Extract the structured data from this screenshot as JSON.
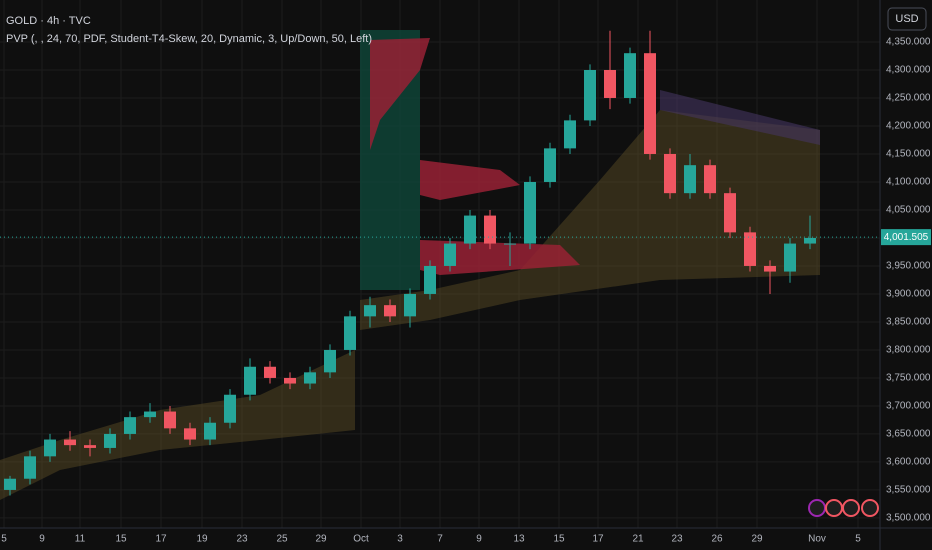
{
  "chart_data": {
    "type": "candlestick",
    "title": "GOLD · 4h · TVC",
    "subtitle": "PVP (, , 24, 70, PDF, Student-T4-Skew, 20, Dynamic, 3, Up/Down, 50, Left)",
    "currency": "USD",
    "up_color": "#26a69a",
    "down_color": "#f05662",
    "x": [
      0,
      1,
      2,
      3,
      4,
      5,
      6,
      7,
      8,
      9,
      10,
      11,
      12,
      13,
      14,
      15,
      16,
      17,
      18,
      19,
      20,
      21,
      22,
      23,
      24,
      25,
      26,
      27,
      28,
      29,
      30,
      31,
      32,
      33,
      34,
      35,
      36,
      37,
      38,
      39,
      40
    ],
    "open": [
      3550,
      3570,
      3610,
      3640,
      3630,
      3625,
      3650,
      3680,
      3690,
      3660,
      3640,
      3670,
      3720,
      3770,
      3750,
      3740,
      3760,
      3800,
      3860,
      3880,
      3860,
      3900,
      3950,
      3990,
      4040,
      3990,
      3990,
      4100,
      4160,
      4210,
      4300,
      4250,
      4330,
      4150,
      4080,
      4130,
      4080,
      4010,
      3950,
      3940,
      3990
    ],
    "high": [
      3575,
      3620,
      3650,
      3655,
      3640,
      3660,
      3690,
      3705,
      3700,
      3670,
      3680,
      3730,
      3785,
      3780,
      3760,
      3770,
      3810,
      3870,
      3895,
      3890,
      3910,
      3960,
      4000,
      4050,
      4050,
      4010,
      4110,
      4170,
      4220,
      4310,
      4370,
      4340,
      4370,
      4160,
      4150,
      4140,
      4090,
      4020,
      3960,
      4000,
      4040
    ],
    "low": [
      3540,
      3560,
      3600,
      3620,
      3610,
      3615,
      3640,
      3670,
      3650,
      3630,
      3630,
      3660,
      3710,
      3740,
      3730,
      3730,
      3750,
      3790,
      3840,
      3850,
      3840,
      3890,
      3940,
      3980,
      3980,
      3950,
      3980,
      4090,
      4150,
      4200,
      4230,
      4240,
      4140,
      4070,
      4070,
      4070,
      4000,
      3940,
      3900,
      3920,
      3980
    ],
    "close": [
      3570,
      3610,
      3640,
      3630,
      3625,
      3650,
      3680,
      3690,
      3660,
      3640,
      3670,
      3720,
      3770,
      3750,
      3740,
      3760,
      3800,
      3860,
      3880,
      3860,
      3900,
      3950,
      3990,
      4040,
      3990,
      3990,
      4100,
      4160,
      4210,
      4300,
      4250,
      4330,
      4150,
      4080,
      4130,
      4080,
      4010,
      3950,
      3940,
      3990,
      4000
    ],
    "last_price": 4001.505,
    "last_price_label": "4,001.505",
    "xlim": [
      -0.5,
      43.5
    ],
    "ylim": [
      3482,
      4425
    ],
    "grid": true,
    "xticks": [
      {
        "value": -0.3,
        "label": "5"
      },
      {
        "value": 1.6,
        "label": "9"
      },
      {
        "value": 3.5,
        "label": "11"
      },
      {
        "value": 5.55,
        "label": "15"
      },
      {
        "value": 7.55,
        "label": "17"
      },
      {
        "value": 9.6,
        "label": "19"
      },
      {
        "value": 11.6,
        "label": "23"
      },
      {
        "value": 13.6,
        "label": "25"
      },
      {
        "value": 15.55,
        "label": "29"
      },
      {
        "value": 17.55,
        "label": "Oct"
      },
      {
        "value": 19.5,
        "label": "3"
      },
      {
        "value": 21.5,
        "label": "7"
      },
      {
        "value": 23.45,
        "label": "9"
      },
      {
        "value": 25.45,
        "label": "13"
      },
      {
        "value": 27.45,
        "label": "15"
      },
      {
        "value": 29.4,
        "label": "17"
      },
      {
        "value": 31.4,
        "label": "21"
      },
      {
        "value": 33.35,
        "label": "23"
      },
      {
        "value": 35.35,
        "label": "26"
      },
      {
        "value": 37.35,
        "label": "29"
      },
      {
        "value": 40.35,
        "label": "Nov"
      },
      {
        "value": 42.4,
        "label": "5"
      }
    ],
    "yticks": [
      {
        "value": 3500,
        "label": "3,500.000"
      },
      {
        "value": 3550,
        "label": "3,550.000"
      },
      {
        "value": 3600,
        "label": "3,600.000"
      },
      {
        "value": 3650,
        "label": "3,650.000"
      },
      {
        "value": 3700,
        "label": "3,700.000"
      },
      {
        "value": 3750,
        "label": "3,750.000"
      },
      {
        "value": 3800,
        "label": "3,800.000"
      },
      {
        "value": 3850,
        "label": "3,850.000"
      },
      {
        "value": 3900,
        "label": "3,900.000"
      },
      {
        "value": 3950,
        "label": "3,950.000"
      },
      {
        "value": 4000,
        "label": "4,000.000"
      },
      {
        "value": 4050,
        "label": "4,050.000"
      },
      {
        "value": 4100,
        "label": "4,100.000"
      },
      {
        "value": 4150,
        "label": "4,150.000"
      },
      {
        "value": 4200,
        "label": "4,200.000"
      },
      {
        "value": 4250,
        "label": "4,250.000"
      },
      {
        "value": 4300,
        "label": "4,300.000"
      },
      {
        "value": 4350,
        "label": "4,350.000"
      }
    ]
  }
}
